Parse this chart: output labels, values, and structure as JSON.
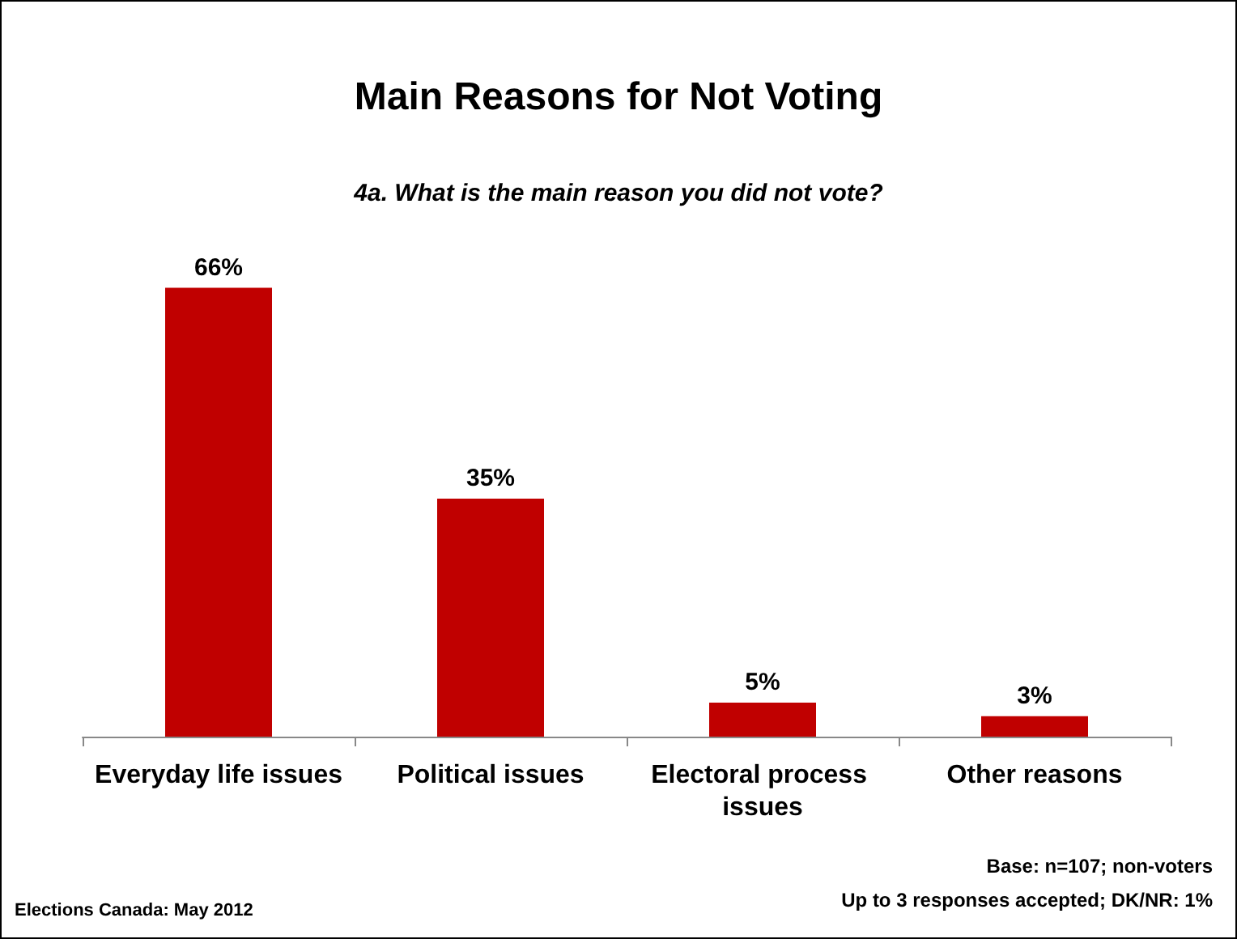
{
  "chart_data": {
    "type": "bar",
    "title": "Main Reasons for Not Voting",
    "subtitle": "4a. What is the main reason you did not vote?",
    "categories": [
      "Everyday life issues",
      "Political issues",
      "Electoral process issues",
      "Other reasons"
    ],
    "values": [
      66,
      35,
      5,
      3
    ],
    "color": "#c00000",
    "value_labels": [
      "66%",
      "35%",
      "5%",
      "3%"
    ],
    "annotations": [
      "Base: n=107; non-voters",
      "Up to 3 responses accepted; DK/NR: 1%",
      "Elections Canada: May 2012"
    ]
  }
}
